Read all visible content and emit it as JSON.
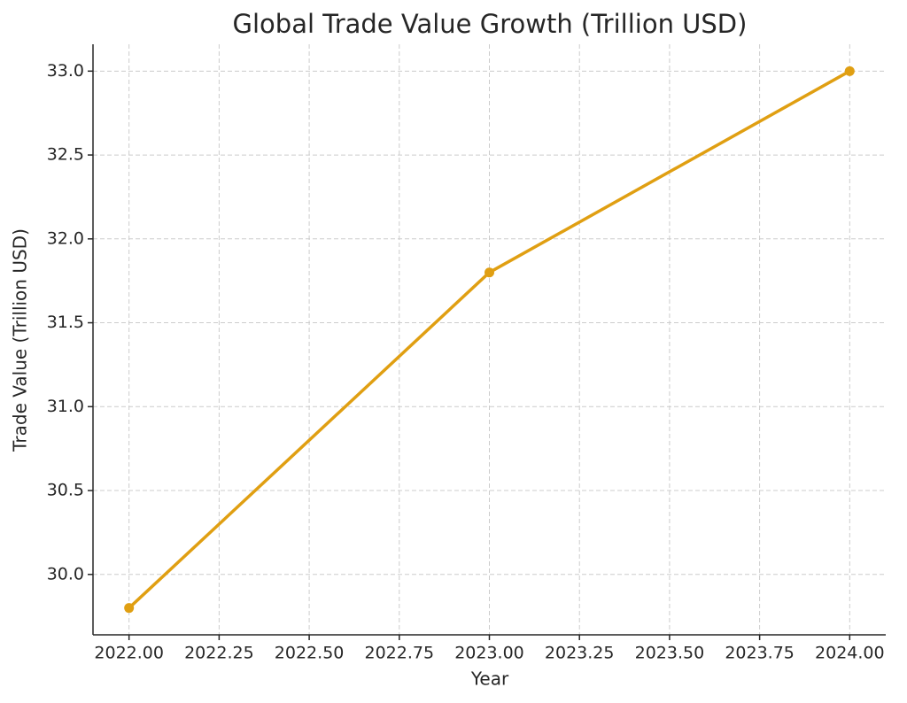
{
  "chart_data": {
    "type": "line",
    "title": "Global Trade Value Growth (Trillion USD)",
    "x_label": "Year",
    "y_label": "Trade Value (Trillion USD)",
    "x": [
      2022,
      2023,
      2024
    ],
    "series": [
      {
        "name": "Trade Value",
        "color": "#e09f12",
        "values": [
          29.8,
          31.8,
          33.0
        ]
      }
    ],
    "xlim": [
      2021.9,
      2024.1
    ],
    "ylim": [
      29.64,
      33.16
    ],
    "xticks": [
      {
        "value": 2022,
        "label": "2022.00"
      },
      {
        "value": 2022.25,
        "label": "2022.25"
      },
      {
        "value": 2022.5,
        "label": "2022.50"
      },
      {
        "value": 2022.75,
        "label": "2022.75"
      },
      {
        "value": 2023,
        "label": "2023.00"
      },
      {
        "value": 2023.25,
        "label": "2023.25"
      },
      {
        "value": 2023.5,
        "label": "2023.50"
      },
      {
        "value": 2023.75,
        "label": "2023.75"
      },
      {
        "value": 2024,
        "label": "2024.00"
      }
    ],
    "yticks": [
      {
        "value": 30,
        "label": "30.0"
      },
      30.5,
      {
        "value": 31,
        "label": "31.0"
      },
      31.5,
      {
        "value": 32,
        "label": "32.0"
      },
      32.5,
      {
        "value": 33,
        "label": "33.0"
      }
    ],
    "grid": true
  }
}
